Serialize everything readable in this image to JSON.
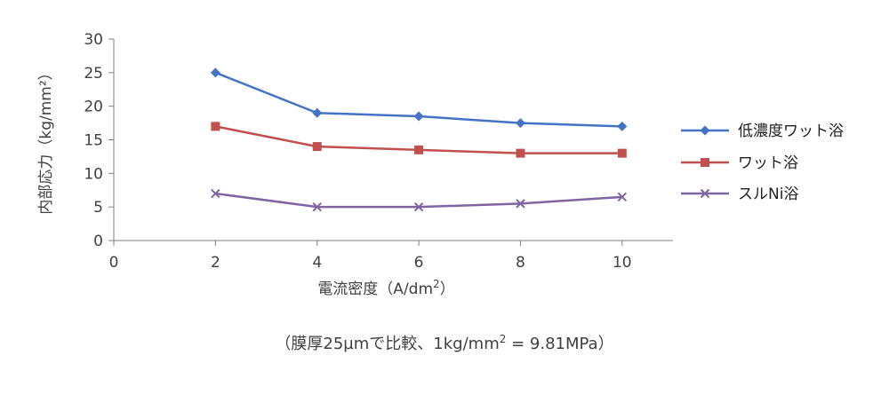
{
  "chart_data": {
    "type": "line",
    "xlabel": "電流密度（A/dm",
    "xlabel_sup": "2",
    "xlabel_end": "）",
    "ylabel": "内部応力（kg/mm²）",
    "xlim": [
      0,
      11
    ],
    "ylim": [
      0,
      30
    ],
    "x_ticks": [
      0,
      2,
      4,
      6,
      8,
      10
    ],
    "y_ticks": [
      0,
      5,
      10,
      15,
      20,
      25,
      30
    ],
    "x": [
      2,
      4,
      6,
      8,
      10
    ],
    "grid": false,
    "legend_position": "right",
    "series": [
      {
        "name": "低濃度ワット浴",
        "values": [
          25,
          19,
          18.5,
          17.5,
          17
        ],
        "color": "#4472C4",
        "marker": "diamond"
      },
      {
        "name": "ワット浴",
        "values": [
          17,
          14,
          13.5,
          13,
          13
        ],
        "color": "#C0504D",
        "marker": "square"
      },
      {
        "name": "スルNi浴",
        "values": [
          7,
          5,
          5,
          5.5,
          6.5
        ],
        "color": "#8064A2",
        "marker": "x"
      }
    ]
  },
  "footnote": {
    "main": "（膜厚25µmで比較、1kg/mm",
    "sup": "2",
    "end": " = 9.81MPa）"
  }
}
